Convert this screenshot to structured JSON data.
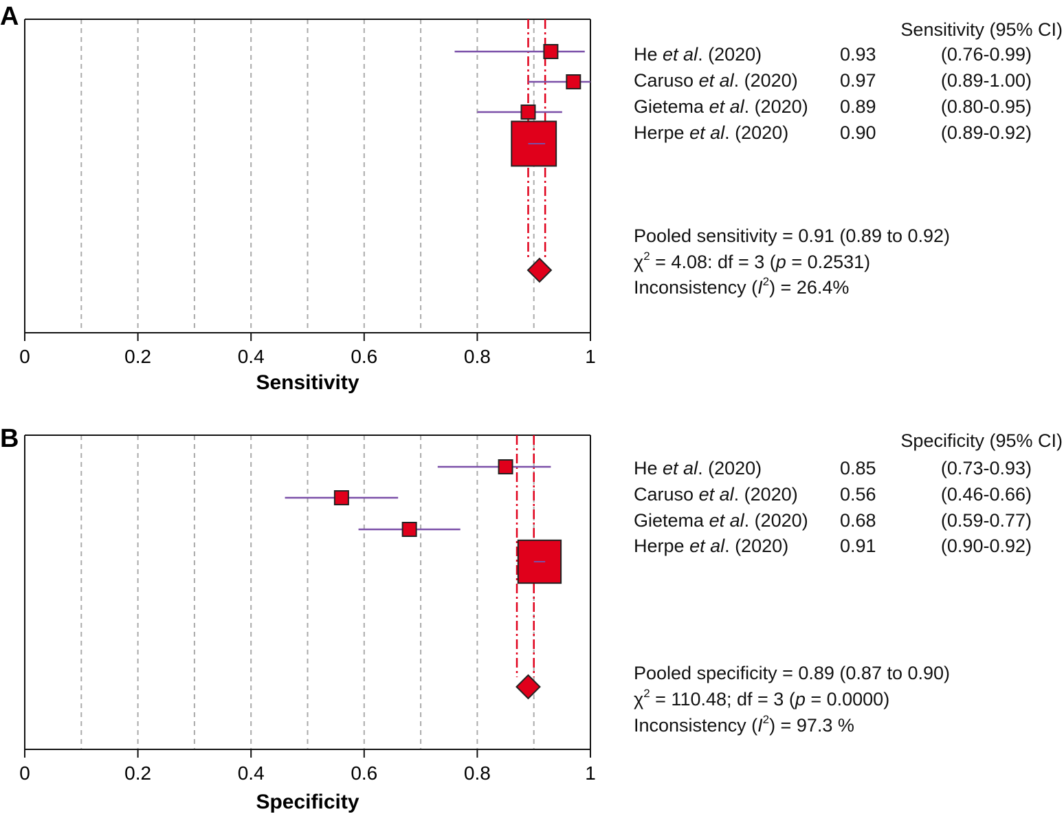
{
  "chart_data": [
    {
      "panel_letter": "A",
      "type": "forest",
      "xlabel": "Sensitivity",
      "xlim": [
        0,
        1
      ],
      "x_ticks": [
        "0",
        "0.2",
        "0.4",
        "0.6",
        "0.8",
        "1"
      ],
      "tick_values": [
        0,
        0.2,
        0.4,
        0.6,
        0.8,
        1
      ],
      "gridlines": [
        0.1,
        0.2,
        0.3,
        0.4,
        0.5,
        0.6,
        0.7,
        0.8,
        0.9
      ],
      "column_header": "Sensitivity (95% CI)",
      "studies": [
        {
          "author": "He",
          "year": "(2020)",
          "estimate": 0.93,
          "estimate_text": "0.93",
          "ci_text": "(0.76-0.99)",
          "ci_low": 0.76,
          "ci_high": 0.99,
          "weight": 1
        },
        {
          "author": "Caruso",
          "year": "(2020)",
          "estimate": 0.97,
          "estimate_text": "0.97",
          "ci_text": "(0.89-1.00)",
          "ci_low": 0.89,
          "ci_high": 1.0,
          "weight": 1
        },
        {
          "author": "Gietema",
          "year": "(2020)",
          "estimate": 0.89,
          "estimate_text": "0.89",
          "ci_text": "(0.80-0.95)",
          "ci_low": 0.8,
          "ci_high": 0.95,
          "weight": 1
        },
        {
          "author": "Herpe",
          "year": "(2020)",
          "estimate": 0.9,
          "estimate_text": "0.90",
          "ci_text": "(0.89-0.92)",
          "ci_low": 0.89,
          "ci_high": 0.92,
          "weight": 13
        }
      ],
      "pooled": {
        "estimate": 0.91,
        "ci_low": 0.89,
        "ci_high": 0.92
      },
      "summary": {
        "pooled_line": "Pooled sensitivity = 0.91 (0.89 to 0.92)",
        "chi_rest": " = 4.08: df = 3 (",
        "p_value": " = 0.2531)",
        "inconsistency_value": ") = 26.4%"
      }
    },
    {
      "panel_letter": "B",
      "type": "forest",
      "xlabel": "Specificity",
      "xlim": [
        0,
        1
      ],
      "x_ticks": [
        "0",
        "0.2",
        "0.4",
        "0.6",
        "0.8",
        "1"
      ],
      "tick_values": [
        0,
        0.2,
        0.4,
        0.6,
        0.8,
        1
      ],
      "gridlines": [
        0.1,
        0.2,
        0.3,
        0.4,
        0.5,
        0.6,
        0.7,
        0.8,
        0.9
      ],
      "column_header": "Specificity (95% CI)",
      "studies": [
        {
          "author": "He",
          "year": "(2020)",
          "estimate": 0.85,
          "estimate_text": "0.85",
          "ci_text": "(0.73-0.93)",
          "ci_low": 0.73,
          "ci_high": 0.93,
          "weight": 1
        },
        {
          "author": "Caruso",
          "year": "(2020)",
          "estimate": 0.56,
          "estimate_text": "0.56",
          "ci_text": "(0.46-0.66)",
          "ci_low": 0.46,
          "ci_high": 0.66,
          "weight": 1.2
        },
        {
          "author": "Gietema",
          "year": "(2020)",
          "estimate": 0.68,
          "estimate_text": "0.68",
          "ci_text": "(0.59-0.77)",
          "ci_low": 0.59,
          "ci_high": 0.77,
          "weight": 1.2
        },
        {
          "author": "Herpe",
          "year": "(2020)",
          "estimate": 0.91,
          "estimate_text": "0.91",
          "ci_text": "(0.90-0.92)",
          "ci_low": 0.9,
          "ci_high": 0.92,
          "weight": 12
        }
      ],
      "pooled": {
        "estimate": 0.89,
        "ci_low": 0.87,
        "ci_high": 0.9
      },
      "summary": {
        "pooled_line": "Pooled specificity = 0.89 (0.87 to 0.90)",
        "chi_rest": " = 110.48; df = 3 (",
        "p_value": " = 0.0000)",
        "inconsistency_value": ") = 97.3 %"
      }
    }
  ],
  "text": {
    "et_al": "et al",
    "period": ".",
    "chi_symbol": "χ",
    "superscript_two": "2",
    "p_symbol": "p",
    "inconsistency_prefix": "Inconsistency (",
    "i_symbol": "I",
    "superscript_i": "2"
  },
  "colors": {
    "marker_fill": "#e0001b",
    "ci_line": "#7a4fa8",
    "pooled_line": "#e0001b",
    "grid": "#aaaaaa",
    "axis": "#111111"
  }
}
